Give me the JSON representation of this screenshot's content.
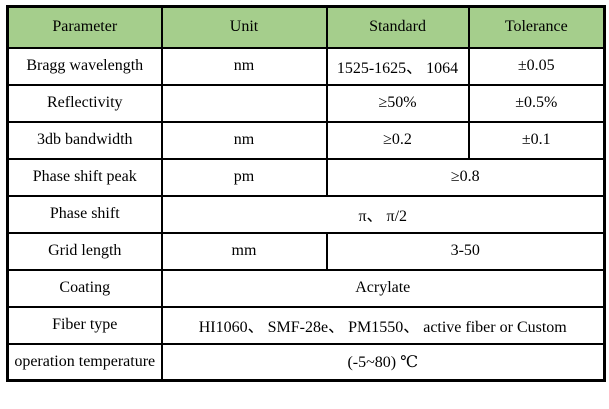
{
  "colors": {
    "header_bg": "#a5ce8c",
    "border": "#000000",
    "text": "#000000",
    "row_bg": "#ffffff"
  },
  "table": {
    "header": [
      "Parameter",
      "Unit",
      "Standard",
      "Tolerance"
    ],
    "rows": [
      {
        "cells": [
          "Bragg wavelength",
          "nm",
          "1525-1625、 1064",
          "±0.05"
        ]
      },
      {
        "cells": [
          "Reflectivity",
          "",
          "≥50%",
          "±0.5%"
        ]
      },
      {
        "cells": [
          "3db bandwidth",
          "nm",
          "≥0.2",
          "±0.1"
        ]
      },
      {
        "cells": [
          "Phase shift peak",
          "pm",
          "≥0.8"
        ]
      },
      {
        "cells": [
          "Phase shift",
          "π、 π/2"
        ]
      },
      {
        "cells": [
          "Grid length",
          "mm",
          "3-50"
        ]
      },
      {
        "cells": [
          "Coating",
          "Acrylate"
        ]
      },
      {
        "cells": [
          "Fiber type",
          "HI1060、 SMF-28e、 PM1550、 active fiber or Custom"
        ]
      },
      {
        "cells": [
          "operation temperature",
          "(-5~80)  ℃"
        ]
      }
    ]
  }
}
